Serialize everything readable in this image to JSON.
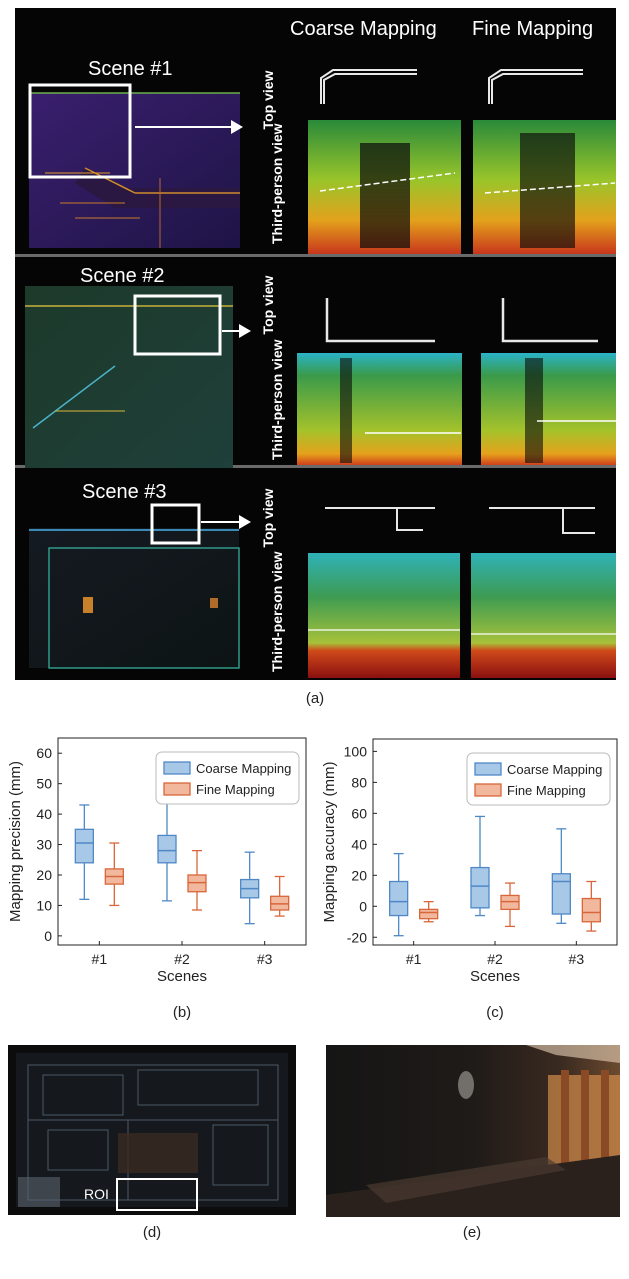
{
  "figure_a": {
    "col_headers": [
      "Coarse Mapping",
      "Fine Mapping"
    ],
    "scenes": [
      "Scene #1",
      "Scene #2",
      "Scene #3"
    ],
    "row_labels": {
      "top": "Top view",
      "third": "Third-person view"
    },
    "caption": "(a)"
  },
  "chart_data": [
    {
      "type": "box",
      "ylabel": "Mapping precision (mm)",
      "xlabel": "Scenes",
      "categories": [
        "#1",
        "#2",
        "#3"
      ],
      "ylim": [
        -3,
        65
      ],
      "yticks": [
        0,
        10,
        20,
        30,
        40,
        50,
        60
      ],
      "legend_position": "top-right",
      "series": [
        {
          "name": "Coarse Mapping",
          "color": "#4f88c6",
          "fill": "#a8c8e8",
          "boxes": [
            {
              "whisker_low": 12,
              "q1": 24,
              "median": 30.5,
              "q3": 35,
              "whisker_high": 43
            },
            {
              "whisker_low": 11.5,
              "q1": 24,
              "median": 28,
              "q3": 33,
              "whisker_high": 44
            },
            {
              "whisker_low": 4,
              "q1": 12.5,
              "median": 15.5,
              "q3": 18.5,
              "whisker_high": 27.5
            }
          ]
        },
        {
          "name": "Fine Mapping",
          "color": "#d9663a",
          "fill": "#f1b89e",
          "boxes": [
            {
              "whisker_low": 10,
              "q1": 17,
              "median": 19.5,
              "q3": 22,
              "whisker_high": 30.5
            },
            {
              "whisker_low": 8.5,
              "q1": 14.5,
              "median": 17.5,
              "q3": 20,
              "whisker_high": 28
            },
            {
              "whisker_low": 6.5,
              "q1": 8.5,
              "median": 10.5,
              "q3": 13,
              "whisker_high": 19.5
            }
          ]
        }
      ],
      "caption": "(b)"
    },
    {
      "type": "box",
      "ylabel": "Mapping accuracy (mm)",
      "xlabel": "Scenes",
      "categories": [
        "#1",
        "#2",
        "#3"
      ],
      "ylim": [
        -25,
        108
      ],
      "yticks": [
        -20,
        0,
        20,
        40,
        60,
        80,
        100
      ],
      "legend_position": "top-right",
      "series": [
        {
          "name": "Coarse Mapping",
          "color": "#4f88c6",
          "fill": "#a8c8e8",
          "boxes": [
            {
              "whisker_low": -19,
              "q1": -6,
              "median": 3,
              "q3": 16,
              "whisker_high": 34
            },
            {
              "whisker_low": -6,
              "q1": -1,
              "median": 13,
              "q3": 25,
              "whisker_high": 58
            },
            {
              "whisker_low": -11,
              "q1": -5,
              "median": 16,
              "q3": 21,
              "whisker_high": 50
            }
          ]
        },
        {
          "name": "Fine Mapping",
          "color": "#d9663a",
          "fill": "#f1b89e",
          "boxes": [
            {
              "whisker_low": -10,
              "q1": -8,
              "median": -4,
              "q3": -2,
              "whisker_high": 3
            },
            {
              "whisker_low": -13,
              "q1": -2,
              "median": 3,
              "q3": 7,
              "whisker_high": 15
            },
            {
              "whisker_low": -16,
              "q1": -10,
              "median": -4,
              "q3": 5,
              "whisker_high": 16
            }
          ]
        }
      ],
      "caption": "(c)"
    }
  ],
  "figure_d": {
    "roi_label": "ROI",
    "caption": "(d)"
  },
  "figure_e": {
    "caption": "(e)"
  }
}
